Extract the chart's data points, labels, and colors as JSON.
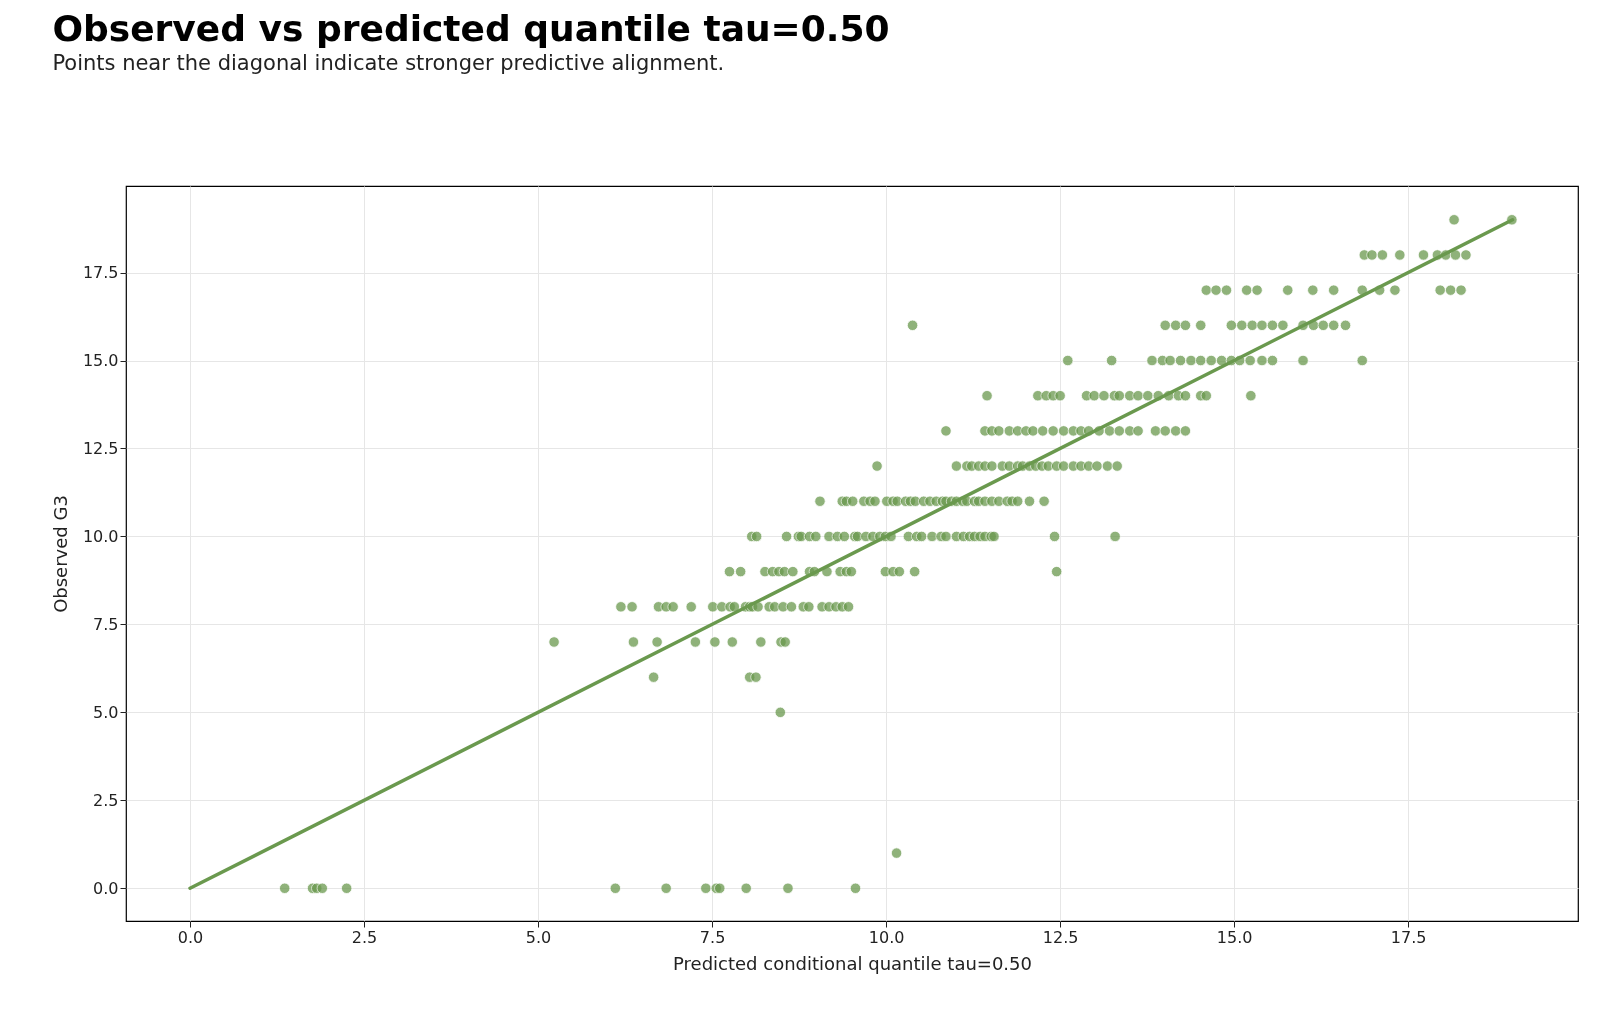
{
  "chart_data": {
    "type": "scatter",
    "title": "Observed vs predicted quantile tau=0.50",
    "subtitle": "Points near the diagonal indicate stronger predictive alignment.",
    "xlabel": "Predicted conditional quantile tau=0.50",
    "ylabel": "Observed G3",
    "xlim": [
      -0.92,
      19.94
    ],
    "ylim": [
      -0.93,
      19.96
    ],
    "xticks": [
      {
        "value": 0,
        "label": "0.0"
      },
      {
        "value": 2.5,
        "label": "2.5"
      },
      {
        "value": 5,
        "label": "5.0"
      },
      {
        "value": 7.5,
        "label": "7.5"
      },
      {
        "value": 10,
        "label": "10.0"
      },
      {
        "value": 12.5,
        "label": "12.5"
      },
      {
        "value": 15,
        "label": "15.0"
      },
      {
        "value": 17.5,
        "label": "17.5"
      }
    ],
    "yticks": [
      {
        "value": 0,
        "label": "0.0"
      },
      {
        "value": 2.5,
        "label": "2.5"
      },
      {
        "value": 5,
        "label": "5.0"
      },
      {
        "value": 7.5,
        "label": "7.5"
      },
      {
        "value": 10,
        "label": "10.0"
      },
      {
        "value": 12.5,
        "label": "12.5"
      },
      {
        "value": 15,
        "label": "15.0"
      },
      {
        "value": 17.5,
        "label": "17.5"
      }
    ],
    "grid": true,
    "series": [
      {
        "marker": "circle",
        "color": "#6a994e",
        "x": [
          1.36,
          1.76,
          1.82,
          1.9,
          2.25,
          6.11,
          6.84,
          7.41,
          7.56,
          7.61,
          7.99,
          8.59,
          9.56,
          10.15,
          8.48,
          6.66,
          8.04,
          8.13,
          5.23,
          6.37,
          6.71,
          7.26,
          7.54,
          7.79,
          8.2,
          8.49,
          8.55,
          6.19,
          6.35,
          6.73,
          6.84,
          6.94,
          7.2,
          7.51,
          7.64,
          7.76,
          7.82,
          7.98,
          8.04,
          8.08,
          8.16,
          8.32,
          8.4,
          8.52,
          8.64,
          8.81,
          8.89,
          9.08,
          9.18,
          9.28,
          9.37,
          9.46,
          7.75,
          7.91,
          8.26,
          8.37,
          8.46,
          8.54,
          8.66,
          8.9,
          8.97,
          9.15,
          9.34,
          9.43,
          9.5,
          9.99,
          10.1,
          10.19,
          10.41,
          12.45,
          8.07,
          8.14,
          8.57,
          8.74,
          8.78,
          8.9,
          8.99,
          9.18,
          9.3,
          9.4,
          9.55,
          9.59,
          9.71,
          9.81,
          9.91,
          9.99,
          10.07,
          10.32,
          10.44,
          10.51,
          10.66,
          10.79,
          10.86,
          11.01,
          11.11,
          11.2,
          11.27,
          11.35,
          11.42,
          11.51,
          11.55,
          12.42,
          13.29,
          9.05,
          9.37,
          9.43,
          9.52,
          9.68,
          9.77,
          9.84,
          10.01,
          10.1,
          10.16,
          10.28,
          10.35,
          10.42,
          10.54,
          10.63,
          10.72,
          10.81,
          10.86,
          10.94,
          11.01,
          11.1,
          11.16,
          11.27,
          11.33,
          11.42,
          11.52,
          11.62,
          11.74,
          11.81,
          11.89,
          12.06,
          12.27,
          9.87,
          11.01,
          11.16,
          11.23,
          11.33,
          11.42,
          11.52,
          11.67,
          11.77,
          11.89,
          11.96,
          12.06,
          12.15,
          12.24,
          12.33,
          12.45,
          12.55,
          12.69,
          12.8,
          12.91,
          13.03,
          13.18,
          13.32,
          10.86,
          11.42,
          11.52,
          11.62,
          11.77,
          11.89,
          12.01,
          12.11,
          12.25,
          12.4,
          12.55,
          12.69,
          12.8,
          12.91,
          13.06,
          13.21,
          13.35,
          13.5,
          13.62,
          13.87,
          14.01,
          14.16,
          14.3,
          11.45,
          12.18,
          12.3,
          12.4,
          12.5,
          12.88,
          12.99,
          13.13,
          13.28,
          13.35,
          13.5,
          13.62,
          13.76,
          13.91,
          14.06,
          14.2,
          14.3,
          14.52,
          14.6,
          15.24,
          12.61,
          13.24,
          13.82,
          13.97,
          14.08,
          14.23,
          14.38,
          14.52,
          14.67,
          14.82,
          14.96,
          15.08,
          15.23,
          15.4,
          15.55,
          15.99,
          16.84,
          10.38,
          14.01,
          14.16,
          14.3,
          14.52,
          14.96,
          15.11,
          15.26,
          15.4,
          15.55,
          15.7,
          15.99,
          16.14,
          16.28,
          16.43,
          16.6,
          14.6,
          14.74,
          14.89,
          15.18,
          15.33,
          15.77,
          16.13,
          16.43,
          16.84,
          17.09,
          17.31,
          17.96,
          18.11,
          18.26,
          16.87,
          16.98,
          17.13,
          17.38,
          17.72,
          17.92,
          18.04,
          18.18,
          18.33,
          18.16,
          18.99
        ],
        "values": [
          0,
          0,
          0,
          0,
          0,
          0,
          0,
          0,
          0,
          0,
          0,
          0,
          0,
          1,
          5,
          6,
          6,
          6,
          7,
          7,
          7,
          7,
          7,
          7,
          7,
          7,
          7,
          8,
          8,
          8,
          8,
          8,
          8,
          8,
          8,
          8,
          8,
          8,
          8,
          8,
          8,
          8,
          8,
          8,
          8,
          8,
          8,
          8,
          8,
          8,
          8,
          8,
          9,
          9,
          9,
          9,
          9,
          9,
          9,
          9,
          9,
          9,
          9,
          9,
          9,
          9,
          9,
          9,
          9,
          9,
          10,
          10,
          10,
          10,
          10,
          10,
          10,
          10,
          10,
          10,
          10,
          10,
          10,
          10,
          10,
          10,
          10,
          10,
          10,
          10,
          10,
          10,
          10,
          10,
          10,
          10,
          10,
          10,
          10,
          10,
          10,
          10,
          10,
          11,
          11,
          11,
          11,
          11,
          11,
          11,
          11,
          11,
          11,
          11,
          11,
          11,
          11,
          11,
          11,
          11,
          11,
          11,
          11,
          11,
          11,
          11,
          11,
          11,
          11,
          11,
          11,
          11,
          11,
          11,
          11,
          12,
          12,
          12,
          12,
          12,
          12,
          12,
          12,
          12,
          12,
          12,
          12,
          12,
          12,
          12,
          12,
          12,
          12,
          12,
          12,
          12,
          12,
          12,
          13,
          13,
          13,
          13,
          13,
          13,
          13,
          13,
          13,
          13,
          13,
          13,
          13,
          13,
          13,
          13,
          13,
          13,
          13,
          13,
          13,
          13,
          13,
          14,
          14,
          14,
          14,
          14,
          14,
          14,
          14,
          14,
          14,
          14,
          14,
          14,
          14,
          14,
          14,
          14,
          14,
          14,
          14,
          15,
          15,
          15,
          15,
          15,
          15,
          15,
          15,
          15,
          15,
          15,
          15,
          15,
          15,
          15,
          15,
          15,
          16,
          16,
          16,
          16,
          16,
          16,
          16,
          16,
          16,
          16,
          16,
          16,
          16,
          16,
          16,
          16,
          17,
          17,
          17,
          17,
          17,
          17,
          17,
          17,
          17,
          17,
          17,
          17,
          17,
          17,
          18,
          18,
          18,
          18,
          18,
          18,
          18,
          18,
          18,
          19,
          19
        ]
      },
      {
        "type": "line",
        "color": "#6a994e",
        "x": [
          0,
          19
        ],
        "values": [
          0,
          19
        ]
      }
    ]
  }
}
